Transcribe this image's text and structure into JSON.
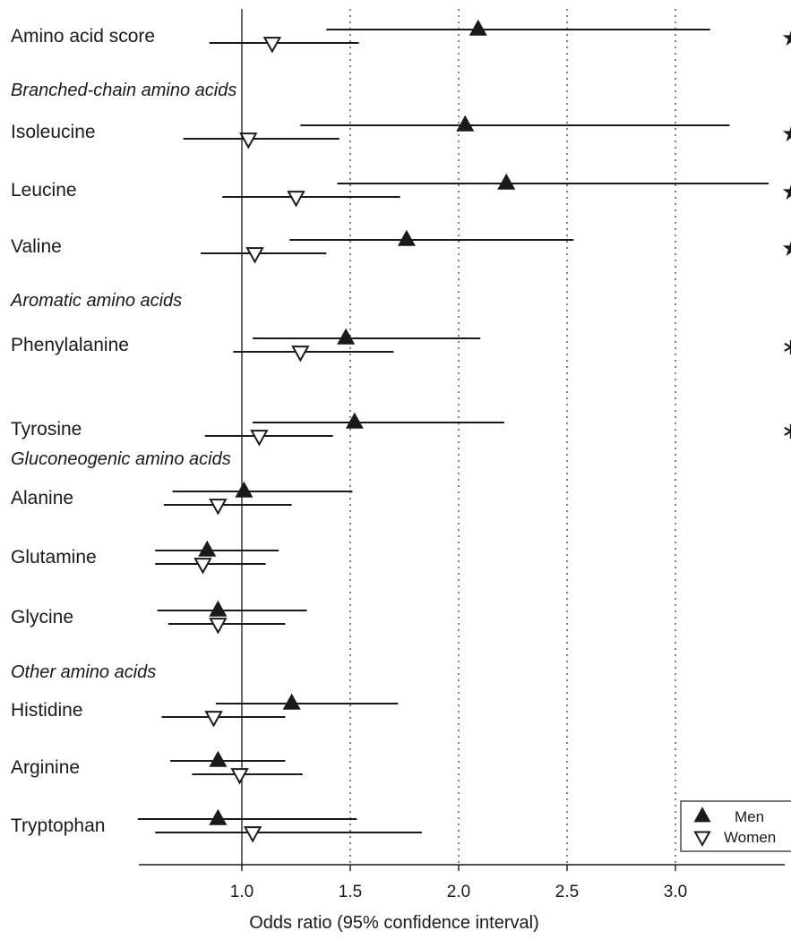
{
  "chart_data": {
    "type": "forest",
    "xlabel": "Odds ratio (95% confidence interval)",
    "x_ticks": [
      "1.0",
      "1.5",
      "2.0",
      "2.5",
      "3.0"
    ],
    "x_tick_values": [
      1.0,
      1.5,
      2.0,
      2.5,
      3.0
    ],
    "xlim": [
      0.52,
      3.5
    ],
    "reference_line": 1.0,
    "dotted_gridlines": [
      1.5,
      2.0,
      2.5,
      3.0
    ],
    "legend": {
      "position": "bottom-right",
      "entries": [
        {
          "series": "men",
          "label": "Men",
          "marker": "filled-triangle-up"
        },
        {
          "series": "women",
          "label": "Women",
          "marker": "open-triangle-down"
        }
      ]
    },
    "rows": [
      {
        "kind": "item",
        "label": "Amino acid score",
        "sig": "★",
        "men": {
          "or": 2.09,
          "lo": 1.39,
          "hi": 3.16
        },
        "women": {
          "or": 1.14,
          "lo": 0.85,
          "hi": 1.54
        }
      },
      {
        "kind": "group",
        "label": "Branched-chain amino acids"
      },
      {
        "kind": "item",
        "label": "Isoleucine",
        "sig": "★",
        "men": {
          "or": 2.03,
          "lo": 1.27,
          "hi": 3.25
        },
        "women": {
          "or": 1.03,
          "lo": 0.73,
          "hi": 1.45
        }
      },
      {
        "kind": "item",
        "label": "Leucine",
        "sig": "★",
        "men": {
          "or": 2.22,
          "lo": 1.44,
          "hi": 3.43
        },
        "women": {
          "or": 1.25,
          "lo": 0.91,
          "hi": 1.73
        }
      },
      {
        "kind": "item",
        "label": "Valine",
        "sig": "★",
        "men": {
          "or": 1.76,
          "lo": 1.22,
          "hi": 2.53
        },
        "women": {
          "or": 1.06,
          "lo": 0.81,
          "hi": 1.39
        }
      },
      {
        "kind": "group",
        "label": "Aromatic amino acids"
      },
      {
        "kind": "item",
        "label": "Phenylalanine",
        "sig": "∗",
        "men": {
          "or": 1.48,
          "lo": 1.05,
          "hi": 2.1
        },
        "women": {
          "or": 1.27,
          "lo": 0.96,
          "hi": 1.7
        }
      },
      {
        "kind": "item",
        "label": "Tyrosine",
        "sig": "∗",
        "men": {
          "or": 1.52,
          "lo": 1.05,
          "hi": 2.21
        },
        "women": {
          "or": 1.08,
          "lo": 0.83,
          "hi": 1.42
        }
      },
      {
        "kind": "group",
        "label": "Gluconeogenic amino acids"
      },
      {
        "kind": "item",
        "label": "Alanine",
        "sig": "",
        "men": {
          "or": 1.01,
          "lo": 0.68,
          "hi": 1.51
        },
        "women": {
          "or": 0.89,
          "lo": 0.64,
          "hi": 1.23
        }
      },
      {
        "kind": "item",
        "label": "Glutamine",
        "sig": "",
        "men": {
          "or": 0.84,
          "lo": 0.6,
          "hi": 1.17
        },
        "women": {
          "or": 0.82,
          "lo": 0.6,
          "hi": 1.11
        }
      },
      {
        "kind": "item",
        "label": "Glycine",
        "sig": "",
        "men": {
          "or": 0.89,
          "lo": 0.61,
          "hi": 1.3
        },
        "women": {
          "or": 0.89,
          "lo": 0.66,
          "hi": 1.2
        }
      },
      {
        "kind": "group",
        "label": "Other amino acids"
      },
      {
        "kind": "item",
        "label": "Histidine",
        "sig": "",
        "men": {
          "or": 1.23,
          "lo": 0.88,
          "hi": 1.72
        },
        "women": {
          "or": 0.87,
          "lo": 0.63,
          "hi": 1.2
        }
      },
      {
        "kind": "item",
        "label": "Arginine",
        "sig": "",
        "men": {
          "or": 0.89,
          "lo": 0.67,
          "hi": 1.2
        },
        "women": {
          "or": 0.99,
          "lo": 0.77,
          "hi": 1.28
        }
      },
      {
        "kind": "item",
        "label": "Tryptophan",
        "sig": "",
        "men": {
          "or": 0.89,
          "lo": 0.52,
          "hi": 1.53
        },
        "women": {
          "or": 1.05,
          "lo": 0.6,
          "hi": 1.83
        }
      }
    ]
  },
  "colors": {
    "ink": "#1a1a1a",
    "marker_fill": "#1a1a1a",
    "background": "#ffffff"
  }
}
